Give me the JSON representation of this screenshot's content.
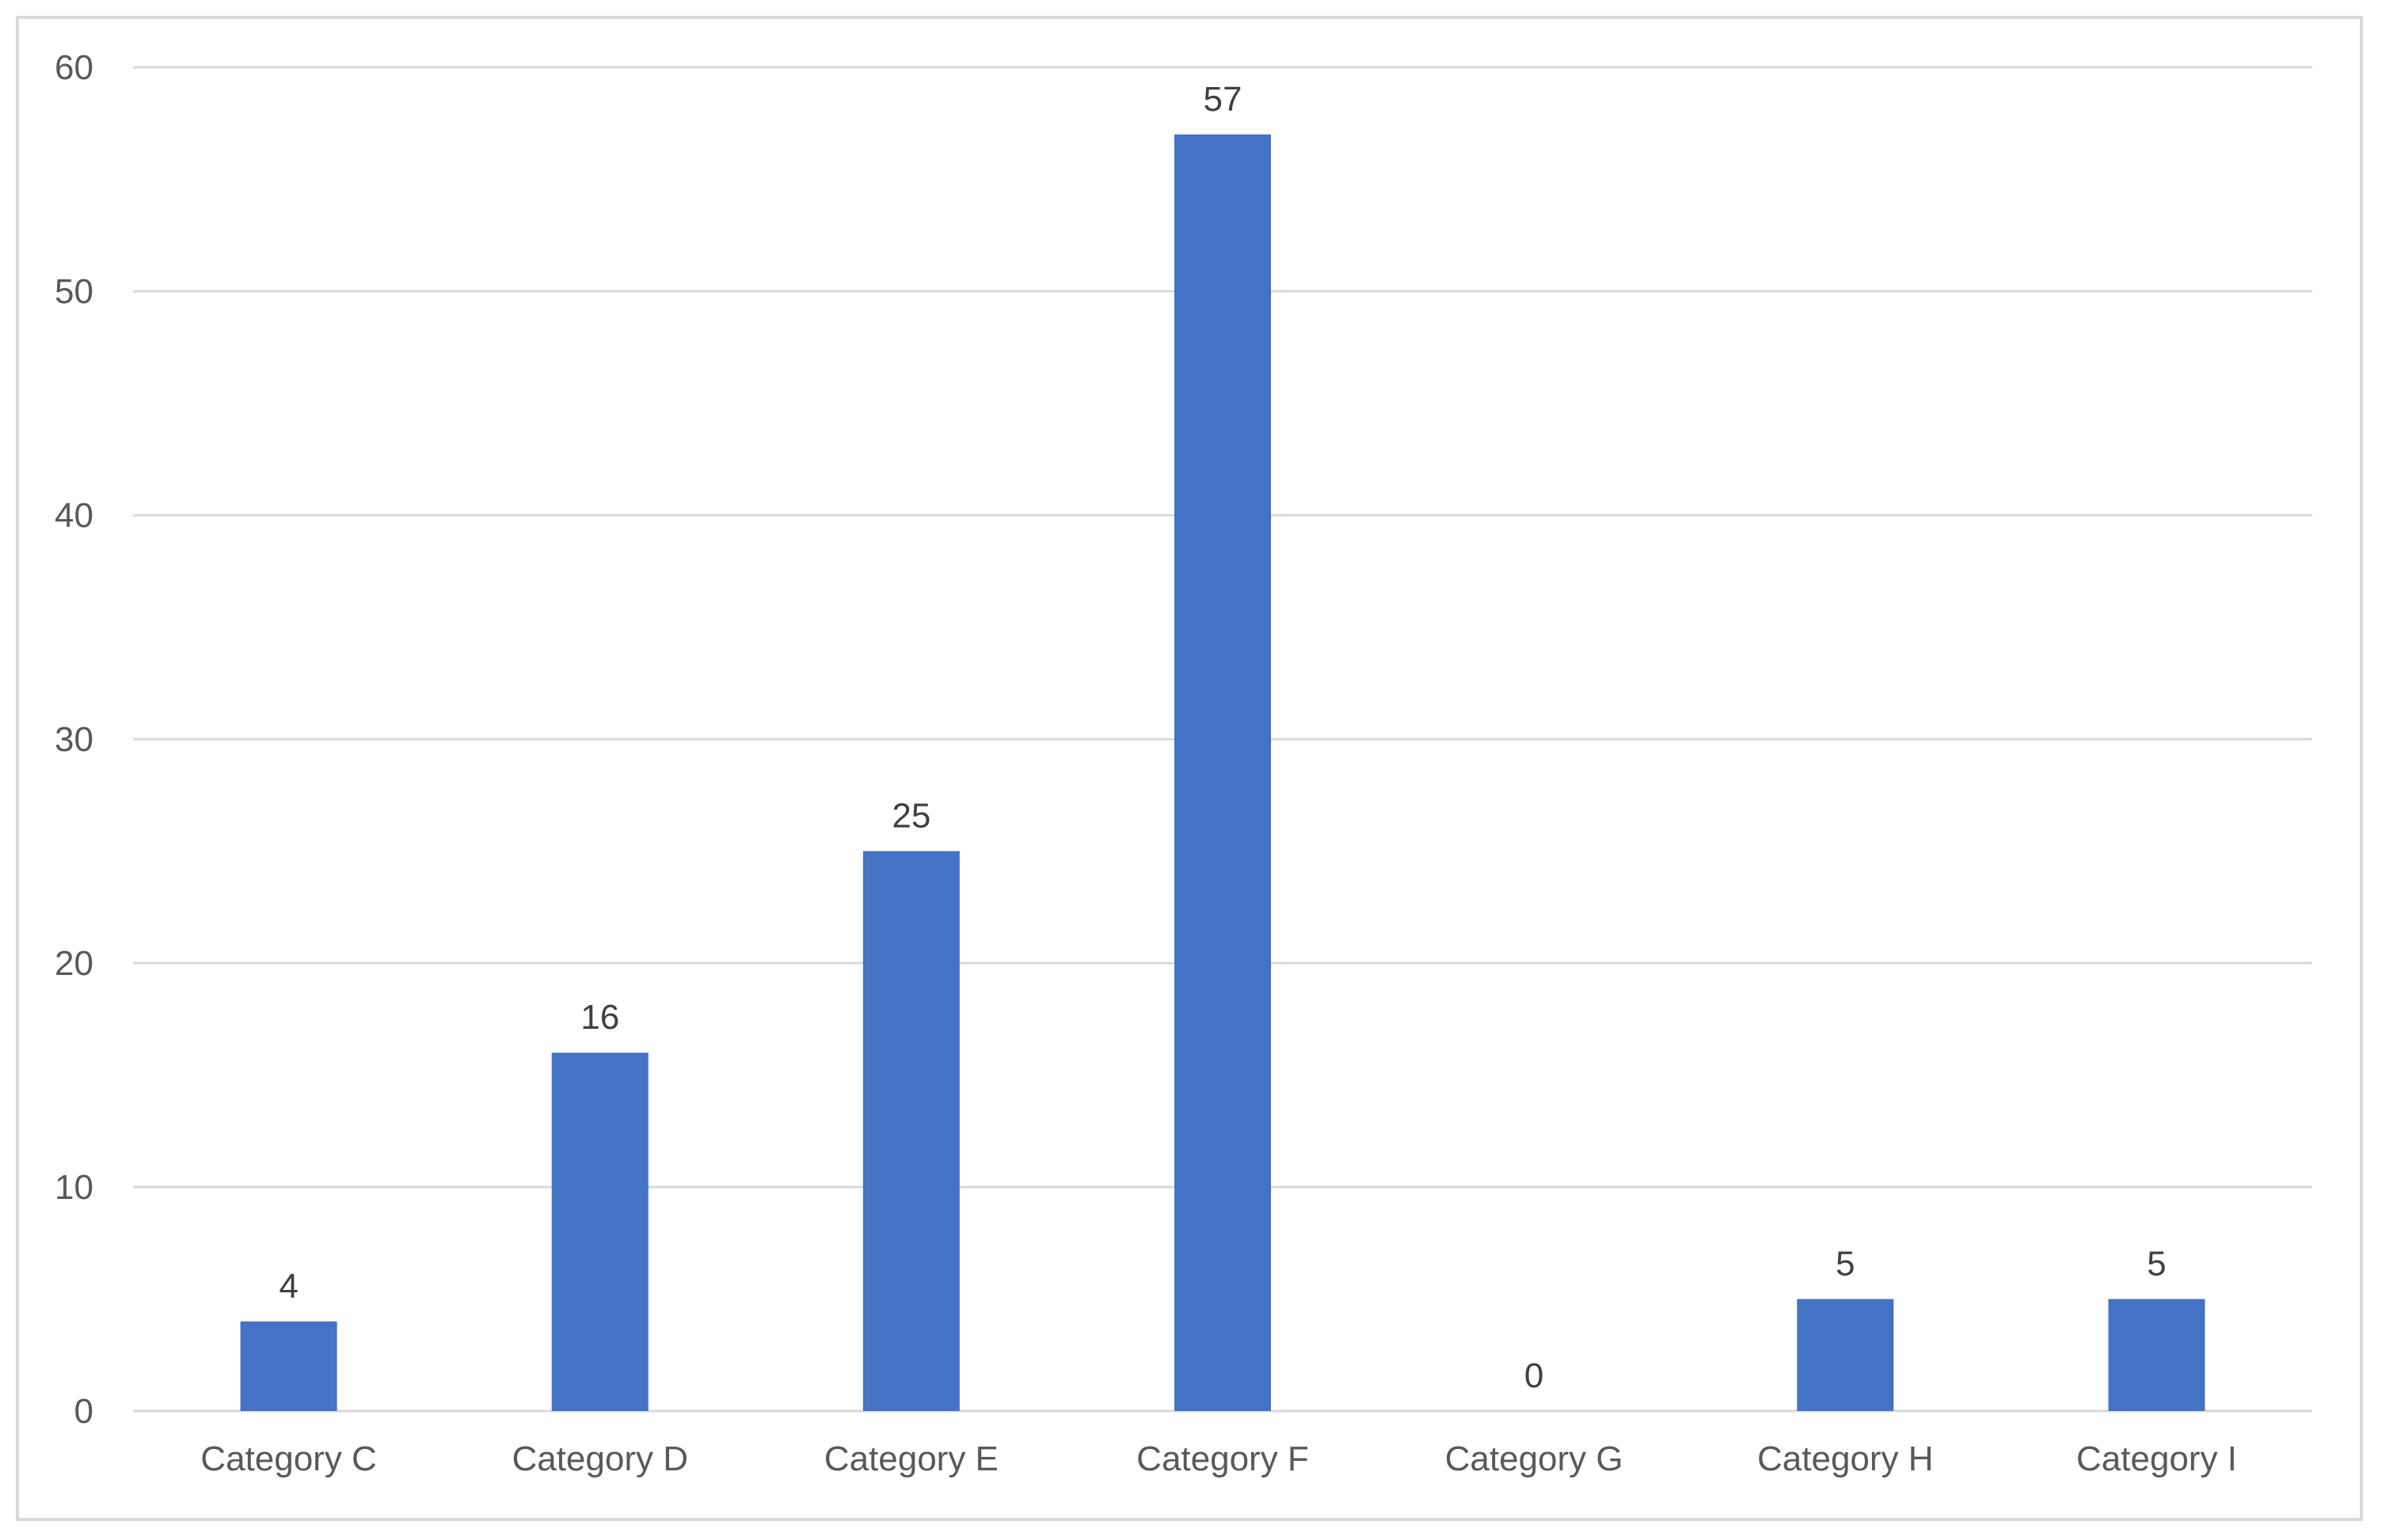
{
  "chart_data": {
    "type": "bar",
    "title": "",
    "xlabel": "",
    "ylabel": "",
    "categories": [
      "Category C",
      "Category D",
      "Category E",
      "Category F",
      "Category G",
      "Category H",
      "Category I"
    ],
    "values": [
      4,
      16,
      25,
      57,
      0,
      5,
      5
    ],
    "data_labels": [
      "4",
      "16",
      "25",
      "57",
      "0",
      "5",
      "5"
    ],
    "ylim": [
      0,
      60
    ],
    "yticks": [
      0,
      10,
      20,
      30,
      40,
      50,
      60
    ],
    "ytick_labels": [
      "0",
      "10",
      "20",
      "30",
      "40",
      "50",
      "60"
    ],
    "grid": true,
    "legend": "none",
    "bar_color": "#4472c4",
    "grid_color": "#d9d9d9"
  }
}
